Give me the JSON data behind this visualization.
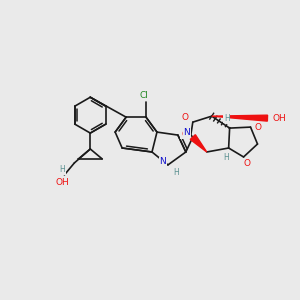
{
  "bg_color": "#eaeaea",
  "colors": {
    "bond": "#1a1a1a",
    "N": "#1010cc",
    "O": "#ee1111",
    "Cl": "#228822",
    "H": "#5a9090"
  },
  "figsize": [
    3.0,
    3.0
  ],
  "dpi": 100
}
